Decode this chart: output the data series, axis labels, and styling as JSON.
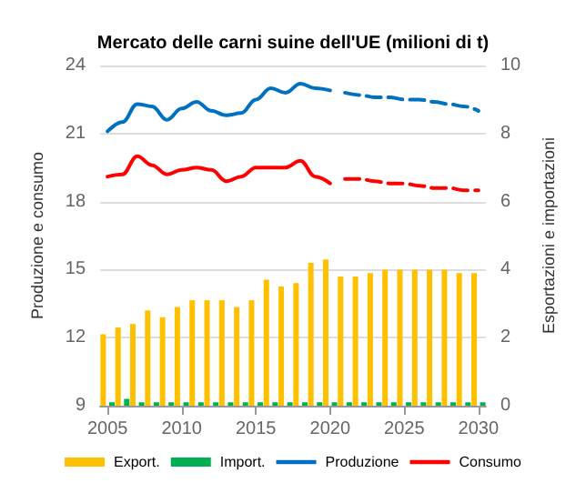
{
  "chart_data": {
    "type": "bar",
    "title": "Mercato delle carni suine dell'UE (milioni di t)",
    "ylabel": "Produzione e consumo",
    "y2label": "Esportazioni e importazioni",
    "x": [
      2005,
      2006,
      2007,
      2008,
      2009,
      2010,
      2011,
      2012,
      2013,
      2014,
      2015,
      2016,
      2017,
      2018,
      2019,
      2020,
      2021,
      2022,
      2023,
      2024,
      2025,
      2026,
      2027,
      2028,
      2029,
      2030
    ],
    "xlim": [
      2004.5,
      2030.5
    ],
    "xticks": [
      2005,
      2010,
      2015,
      2020,
      2025,
      2030
    ],
    "ylim": [
      9,
      24
    ],
    "yticks": [
      9,
      12,
      15,
      18,
      21,
      24
    ],
    "y2lim": [
      0,
      10
    ],
    "y2ticks": [
      0,
      2,
      4,
      6,
      8,
      10
    ],
    "grid": "y",
    "legend": "bottom",
    "marker": "none",
    "series": [
      {
        "name": "Export.",
        "axis": "y2",
        "color": "#ffc000",
        "values": [
          2.1,
          2.3,
          2.4,
          2.8,
          2.6,
          2.9,
          3.1,
          3.1,
          3.1,
          2.9,
          3.1,
          3.7,
          3.5,
          3.6,
          4.2,
          4.3,
          3.8,
          3.8,
          3.9,
          4.0,
          4.0,
          4.0,
          4.0,
          4.0,
          3.9,
          3.9
        ]
      },
      {
        "name": "Import.",
        "axis": "y2",
        "color": "#00b050",
        "values": [
          0.1,
          0.2,
          0.1,
          0.1,
          0.1,
          0.1,
          0.1,
          0.1,
          0.1,
          0.1,
          0.1,
          0.1,
          0.1,
          0.1,
          0.1,
          0.1,
          0.1,
          0.1,
          0.1,
          0.1,
          0.1,
          0.1,
          0.1,
          0.1,
          0.1,
          0.1
        ]
      },
      {
        "name": "Produzione",
        "type": "line",
        "line_style": "solid",
        "color": "#0070c0",
        "values": [
          21.1,
          21.5,
          22.3,
          22.2,
          21.6,
          22.1,
          22.4,
          22.0,
          21.8,
          21.9,
          22.5,
          23.0,
          22.8,
          23.2,
          23.0,
          22.9,
          null,
          null,
          null,
          null,
          null,
          null,
          null,
          null,
          null,
          null
        ]
      },
      {
        "type": "line",
        "line_style": "dashed",
        "color": "#0070c0",
        "values": [
          null,
          null,
          null,
          null,
          null,
          null,
          null,
          null,
          null,
          null,
          null,
          null,
          null,
          null,
          null,
          null,
          22.8,
          22.7,
          22.6,
          22.6,
          22.5,
          22.5,
          22.4,
          22.3,
          22.2,
          22.0
        ]
      },
      {
        "name": "Consumo",
        "type": "line",
        "line_style": "solid",
        "color": "#ff0000",
        "values": [
          19.1,
          19.2,
          20.0,
          19.6,
          19.2,
          19.4,
          19.5,
          19.4,
          18.9,
          19.1,
          19.5,
          19.5,
          19.5,
          19.8,
          19.1,
          18.8,
          null,
          null,
          null,
          null,
          null,
          null,
          null,
          null,
          null,
          null
        ]
      },
      {
        "type": "line",
        "line_style": "dashed",
        "color": "#ff0000",
        "values": [
          null,
          null,
          null,
          null,
          null,
          null,
          null,
          null,
          null,
          null,
          null,
          null,
          null,
          null,
          null,
          null,
          19.0,
          19.0,
          18.9,
          18.8,
          18.8,
          18.7,
          18.6,
          18.6,
          18.5,
          18.5
        ]
      }
    ]
  }
}
